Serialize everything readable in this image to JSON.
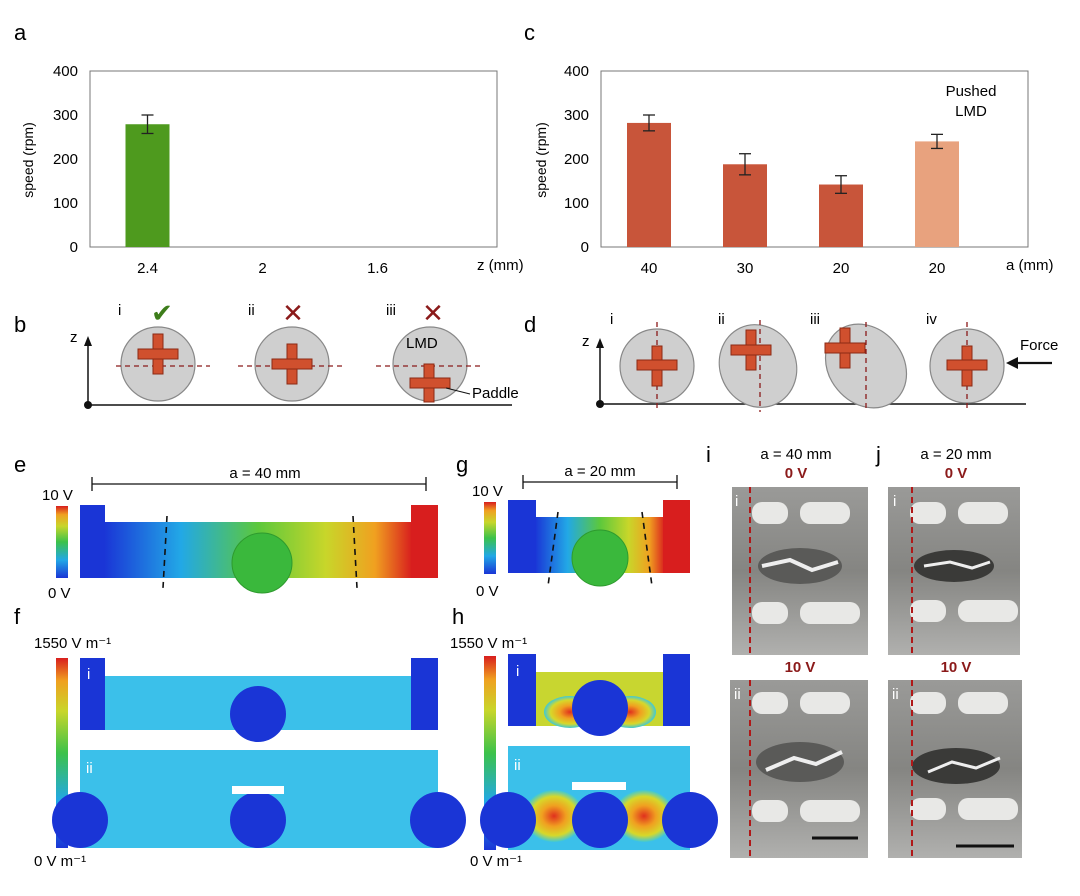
{
  "panels": {
    "a": "a",
    "b": "b",
    "c": "c",
    "d": "d",
    "e": "e",
    "f": "f",
    "g": "g",
    "h": "h",
    "i": "i",
    "j": "j"
  },
  "chart_data": [
    {
      "id": "a",
      "type": "bar",
      "categories": [
        "2.4",
        "2",
        "1.6"
      ],
      "values": [
        279,
        0,
        0
      ],
      "errors": [
        21,
        0,
        0
      ],
      "ylabel": "speed (rpm)",
      "xlabel": "z (mm)",
      "ylim": [
        0,
        400
      ],
      "yticks": [
        "0",
        "100",
        "200",
        "300",
        "400"
      ],
      "bar_colors": [
        "#4e9a1e",
        "#4e9a1e",
        "#4e9a1e"
      ]
    },
    {
      "id": "c",
      "type": "bar",
      "categories": [
        "40",
        "30",
        "20",
        "20"
      ],
      "values": [
        282,
        188,
        142,
        240
      ],
      "errors": [
        18,
        24,
        20,
        16
      ],
      "ylabel": "speed (rpm)",
      "xlabel": "a (mm)",
      "ylim": [
        0,
        400
      ],
      "yticks": [
        "0",
        "100",
        "200",
        "300",
        "400"
      ],
      "bar_colors": [
        "#c8553a",
        "#c8553a",
        "#c8553a",
        "#e8a27e"
      ],
      "annotation": [
        "Pushed",
        "LMD"
      ]
    }
  ],
  "panel_b": {
    "axis": "z",
    "roman": [
      "i",
      "ii",
      "iii"
    ],
    "marks": [
      "✔",
      "✕",
      "✕"
    ],
    "labels": {
      "lmd": "LMD",
      "paddle": "Paddle"
    }
  },
  "panel_d": {
    "axis": "z",
    "roman": [
      "i",
      "ii",
      "iii",
      "iv"
    ],
    "force": "Force"
  },
  "panel_e": {
    "dim": "a = 40 mm",
    "scale_max": "10 V",
    "scale_min": "0 V"
  },
  "panel_g": {
    "dim": "a = 20 mm",
    "scale_max": "10 V",
    "scale_min": "0 V"
  },
  "panel_f": {
    "scale_max": "1550 V m⁻¹",
    "scale_min": "0 V m⁻¹",
    "sub": [
      "i",
      "ii"
    ]
  },
  "panel_h": {
    "scale_max": "1550 V m⁻¹",
    "scale_min": "0 V m⁻¹",
    "sub": [
      "i",
      "ii"
    ]
  },
  "panel_i": {
    "title": "a = 40 mm",
    "top_v": "0 V",
    "bottom_v": "10 V",
    "sub": [
      "i",
      "ii"
    ]
  },
  "panel_j": {
    "title": "a = 20 mm",
    "top_v": "0 V",
    "bottom_v": "10 V",
    "sub": [
      "i",
      "ii"
    ]
  },
  "colors": {
    "green_bar": "#4e9a1e",
    "orange_bar": "#c8553a",
    "light_orange_bar": "#e8a27e",
    "dark_red": "#8b1a1a"
  }
}
